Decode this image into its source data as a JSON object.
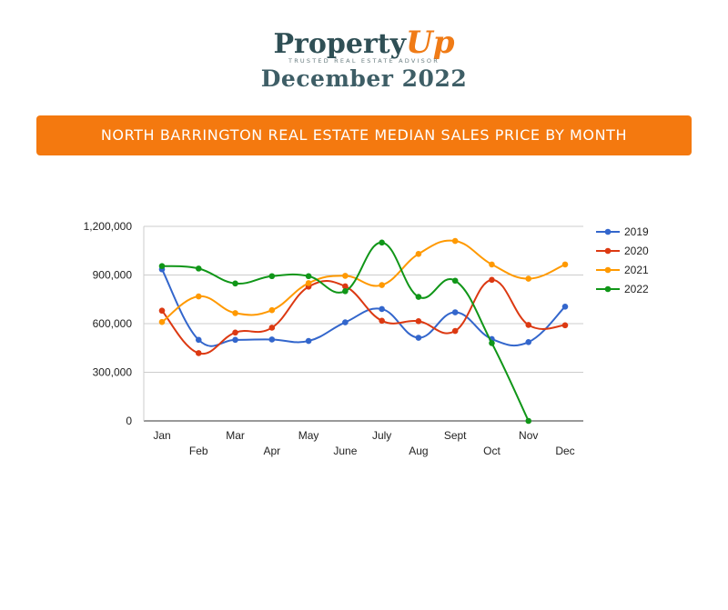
{
  "brand": {
    "logo_main": "Property",
    "logo_accent": "Up",
    "tagline": "TRUSTED REAL ESTATE ADVISOR",
    "period": "December 2022"
  },
  "banner": {
    "title": "NORTH BARRINGTON REAL ESTATE MEDIAN SALES PRICE BY MONTH"
  },
  "chart_data": {
    "type": "line",
    "title": "NORTH BARRINGTON REAL ESTATE MEDIAN SALES PRICE BY MONTH",
    "xlabel": "",
    "ylabel": "",
    "categories": [
      "Jan",
      "Feb",
      "Mar",
      "Apr",
      "May",
      "June",
      "July",
      "Aug",
      "Sept",
      "Oct",
      "Nov",
      "Dec"
    ],
    "ylim": [
      0,
      1200000
    ],
    "yticks": [
      0,
      300000,
      600000,
      900000,
      1200000
    ],
    "ytick_labels": [
      "0",
      "300,000",
      "600,000",
      "900,000",
      "1,200,000"
    ],
    "grid": true,
    "legend_position": "right",
    "smooth": true,
    "series": [
      {
        "name": "2019",
        "color": "#3366cc",
        "values": [
          935000,
          500000,
          500000,
          502000,
          493000,
          608000,
          690000,
          513000,
          670000,
          505000,
          486000,
          705000
        ]
      },
      {
        "name": "2020",
        "color": "#dc3912",
        "values": [
          680000,
          418000,
          545000,
          575000,
          828000,
          830000,
          618000,
          615000,
          555000,
          870000,
          592000,
          590000
        ]
      },
      {
        "name": "2021",
        "color": "#ff9900",
        "values": [
          610000,
          768000,
          665000,
          683000,
          850000,
          895000,
          838000,
          1030000,
          1110000,
          965000,
          877000,
          965000
        ]
      },
      {
        "name": "2022",
        "color": "#109618",
        "values": [
          955000,
          940000,
          848000,
          893000,
          893000,
          800000,
          1100000,
          765000,
          865000,
          480000,
          0,
          null
        ]
      }
    ]
  }
}
